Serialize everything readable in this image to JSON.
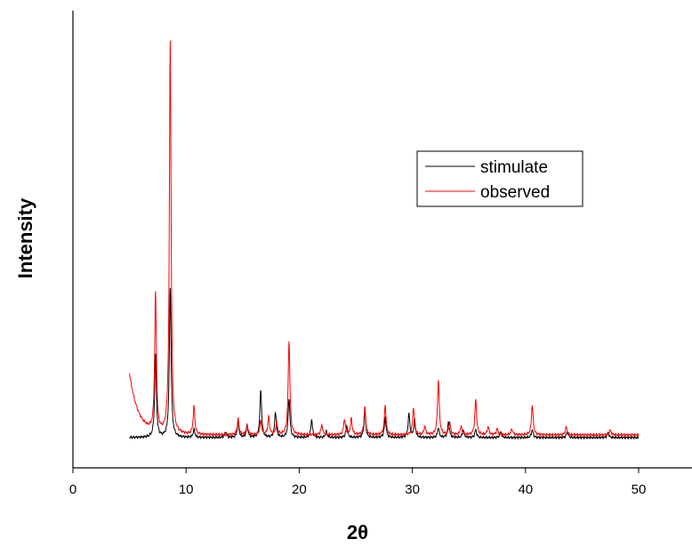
{
  "chart_data": {
    "type": "line",
    "xlabel": "2θ",
    "ylabel": "Intensity",
    "xlim": [
      0,
      55
    ],
    "ylim": [
      0,
      100
    ],
    "x_ticks": [
      0,
      10,
      20,
      30,
      40,
      50
    ],
    "grid": false,
    "legend_position": "upper-right",
    "series": [
      {
        "name": "stimulate",
        "color": "#000000",
        "x_range": [
          5,
          50
        ],
        "baseline": 0,
        "peaks": [
          [
            7.3,
            21
          ],
          [
            8.6,
            38
          ],
          [
            10.7,
            2
          ],
          [
            13.5,
            1.5
          ],
          [
            14.6,
            4
          ],
          [
            15.4,
            3
          ],
          [
            16.6,
            12
          ],
          [
            17.9,
            6.5
          ],
          [
            19.1,
            10
          ],
          [
            21.1,
            4.5
          ],
          [
            22.4,
            1.5
          ],
          [
            24.2,
            3
          ],
          [
            25.8,
            6.5
          ],
          [
            27.6,
            5
          ],
          [
            29.7,
            6
          ],
          [
            30.2,
            4.5
          ],
          [
            32.3,
            2.5
          ],
          [
            33.2,
            4
          ],
          [
            34.5,
            2
          ],
          [
            35.6,
            2
          ],
          [
            37.8,
            1.5
          ],
          [
            40.6,
            2
          ],
          [
            43.7,
            1.5
          ],
          [
            47.3,
            1.2
          ]
        ]
      },
      {
        "name": "observed",
        "color": "#ff0000",
        "x_range": [
          5,
          50
        ],
        "baseline": 0.7,
        "background": {
          "start_height": 15.5,
          "decay": 0.8
        },
        "peaks": [
          [
            7.3,
            35
          ],
          [
            8.6,
            100
          ],
          [
            10.7,
            7
          ],
          [
            14.6,
            4
          ],
          [
            15.4,
            2.5
          ],
          [
            16.6,
            3.5
          ],
          [
            17.3,
            4.5
          ],
          [
            18.0,
            3
          ],
          [
            19.1,
            24
          ],
          [
            22.0,
            2.5
          ],
          [
            24.0,
            4
          ],
          [
            24.6,
            4
          ],
          [
            25.8,
            7
          ],
          [
            27.6,
            7.5
          ],
          [
            30.1,
            7
          ],
          [
            31.1,
            2
          ],
          [
            32.3,
            14
          ],
          [
            33.3,
            3
          ],
          [
            34.3,
            2
          ],
          [
            35.6,
            9
          ],
          [
            36.7,
            2
          ],
          [
            37.5,
            1.5
          ],
          [
            38.8,
            1.5
          ],
          [
            40.6,
            7.5
          ],
          [
            43.6,
            2
          ],
          [
            47.5,
            1.2
          ]
        ]
      }
    ]
  }
}
